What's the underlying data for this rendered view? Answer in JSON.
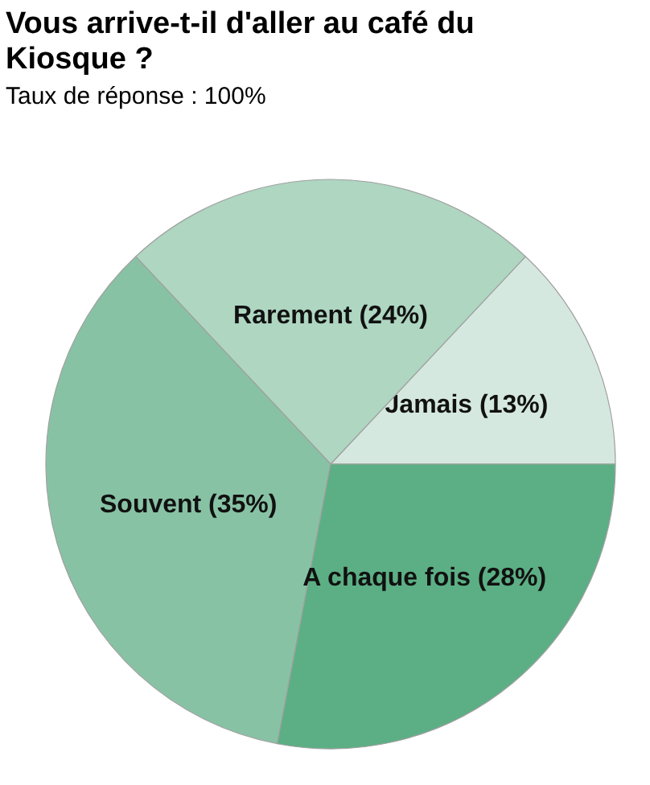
{
  "chart_data": {
    "type": "pie",
    "title": "Vous arrive-t-il d'aller au café du Kiosque ?",
    "subtitle": "Taux de réponse : 100%",
    "categories": [
      "Jamais",
      "Rarement",
      "Souvent",
      "A chaque fois"
    ],
    "values": [
      13,
      24,
      35,
      28
    ],
    "colors": [
      "#d5e8df",
      "#aed6c1",
      "#88c2a5",
      "#5caf84"
    ],
    "value_labels": [
      "(13%)",
      "(24%)",
      "(35%)",
      "(28%)"
    ]
  }
}
